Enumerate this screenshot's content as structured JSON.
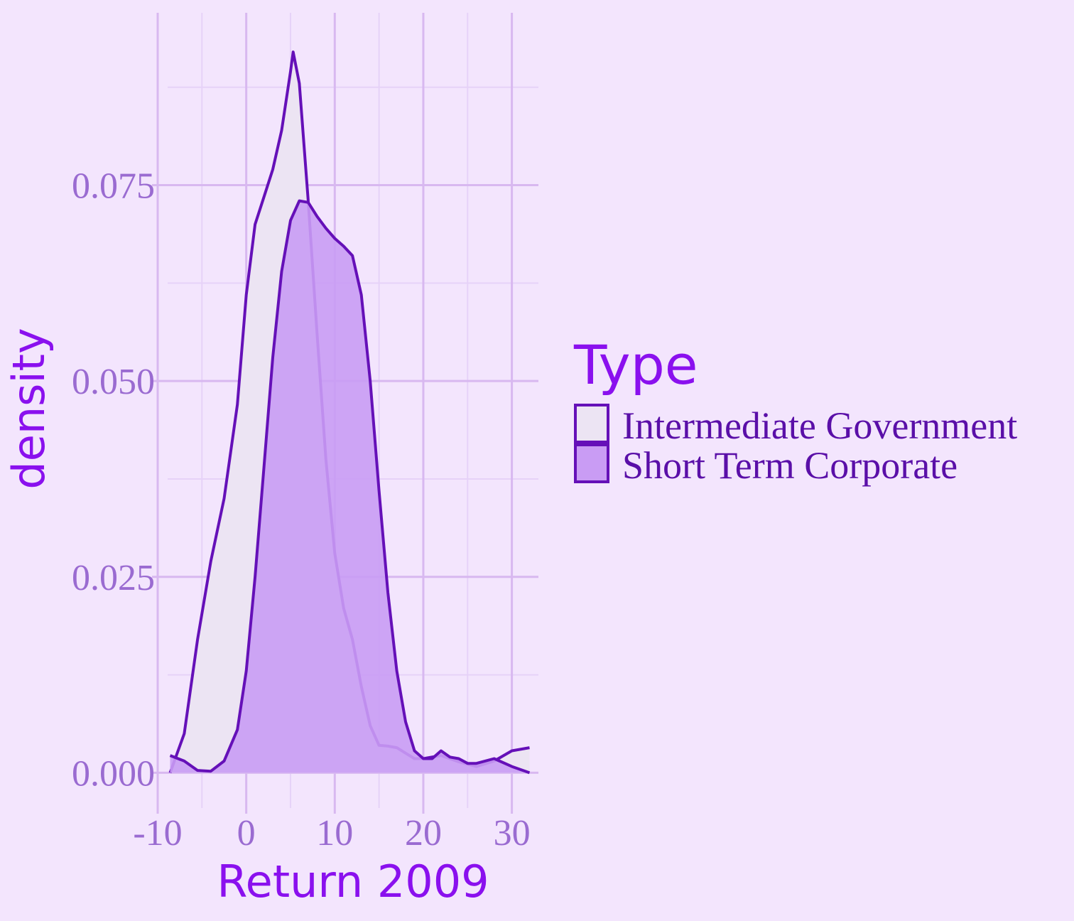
{
  "colors": {
    "background": "#f3e5fd",
    "grid_major": "#d8b8f0",
    "grid_minor": "#e6d2f8",
    "tick_label": "#9a6bd1",
    "title": "#8a10ee",
    "legend_label": "#5a0fa8",
    "outline": "#6510b8"
  },
  "chart_data": {
    "type": "area",
    "subtype": "density",
    "xlabel": "Return 2009",
    "ylabel": "density",
    "xlim": [
      -10,
      33
    ],
    "ylim": [
      -0.0045,
      0.097
    ],
    "x_ticks": [
      -10,
      0,
      10,
      20,
      30
    ],
    "x_tick_labels": [
      "-10",
      "0",
      "10",
      "20",
      "30"
    ],
    "y_ticks": [
      0.0,
      0.025,
      0.05,
      0.075
    ],
    "y_tick_labels": [
      "0.000",
      "0.025",
      "0.050",
      "0.075"
    ],
    "grid": true,
    "legend": {
      "title": "Type",
      "position": "right",
      "entries": [
        "Intermediate Government",
        "Short Term Corporate"
      ]
    },
    "series": [
      {
        "name": "Intermediate Government",
        "fill": "#ece4f3",
        "outline": "#6510b8",
        "x": [
          -8.6,
          -7,
          -5.5,
          -4,
          -2.5,
          -1,
          0,
          1,
          2,
          3,
          4,
          5,
          5.3,
          6,
          7,
          8,
          9,
          10,
          11,
          12,
          13,
          14,
          15,
          16,
          17,
          18,
          19,
          20,
          22,
          24,
          26,
          28,
          30,
          32
        ],
        "y": [
          0.0,
          0.005,
          0.017,
          0.027,
          0.035,
          0.047,
          0.061,
          0.07,
          0.0735,
          0.077,
          0.082,
          0.0895,
          0.092,
          0.088,
          0.073,
          0.056,
          0.04,
          0.028,
          0.021,
          0.017,
          0.011,
          0.006,
          0.0035,
          0.0034,
          0.0032,
          0.0025,
          0.0018,
          0.0018,
          0.0022,
          0.0014,
          0.0008,
          0.0015,
          0.0028,
          0.0032
        ]
      },
      {
        "name": "Short Term Corporate",
        "fill": "#c99cf4",
        "outline": "#6510b8",
        "x": [
          -8.6,
          -7,
          -5.5,
          -4,
          -2.5,
          -1,
          0,
          1,
          2,
          3,
          4,
          5,
          6,
          7,
          8,
          9,
          10,
          11,
          12,
          13,
          14,
          15,
          16,
          17,
          18,
          19,
          20,
          21,
          22,
          23,
          24,
          25,
          26,
          28,
          30,
          32
        ],
        "y": [
          0.0022,
          0.0015,
          0.0003,
          0.0002,
          0.0015,
          0.0055,
          0.013,
          0.025,
          0.039,
          0.053,
          0.064,
          0.0705,
          0.073,
          0.0728,
          0.071,
          0.0695,
          0.0682,
          0.0672,
          0.066,
          0.061,
          0.05,
          0.036,
          0.023,
          0.013,
          0.0065,
          0.0028,
          0.0018,
          0.0018,
          0.0028,
          0.002,
          0.0018,
          0.0012,
          0.0012,
          0.0018,
          0.0008,
          0.0
        ]
      }
    ]
  }
}
